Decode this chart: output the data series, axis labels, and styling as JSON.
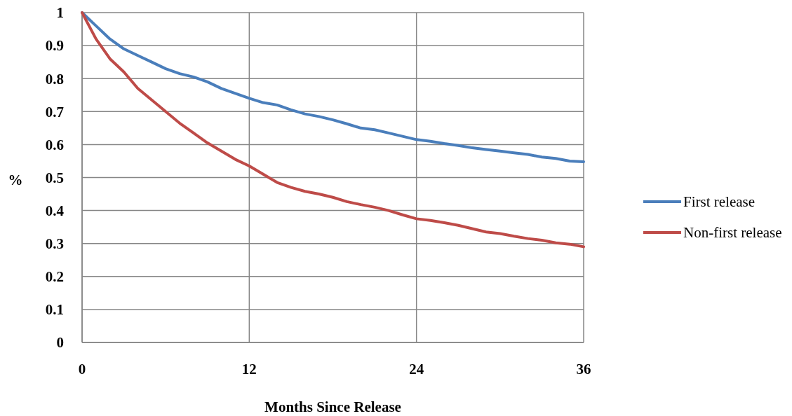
{
  "chart_data": {
    "type": "line",
    "xlabel": "Months Since Release",
    "ylabel": "%",
    "x": [
      0,
      1,
      2,
      3,
      4,
      5,
      6,
      7,
      8,
      9,
      10,
      11,
      12,
      13,
      14,
      15,
      16,
      17,
      18,
      19,
      20,
      21,
      22,
      23,
      24,
      25,
      26,
      27,
      28,
      29,
      30,
      31,
      32,
      33,
      34,
      35,
      36
    ],
    "series": [
      {
        "name": "First release",
        "color": "#4a7ebb",
        "values": [
          1.0,
          0.96,
          0.92,
          0.89,
          0.87,
          0.85,
          0.83,
          0.815,
          0.805,
          0.79,
          0.77,
          0.755,
          0.74,
          0.727,
          0.72,
          0.705,
          0.693,
          0.685,
          0.675,
          0.663,
          0.65,
          0.645,
          0.635,
          0.625,
          0.615,
          0.61,
          0.603,
          0.597,
          0.59,
          0.585,
          0.58,
          0.575,
          0.57,
          0.562,
          0.558,
          0.55,
          0.548
        ]
      },
      {
        "name": "Non-first release",
        "color": "#be4b48",
        "values": [
          1.0,
          0.92,
          0.86,
          0.82,
          0.77,
          0.735,
          0.7,
          0.665,
          0.635,
          0.605,
          0.58,
          0.555,
          0.535,
          0.51,
          0.485,
          0.47,
          0.458,
          0.45,
          0.44,
          0.427,
          0.418,
          0.41,
          0.4,
          0.387,
          0.375,
          0.37,
          0.363,
          0.355,
          0.345,
          0.335,
          0.33,
          0.322,
          0.315,
          0.31,
          0.302,
          0.298,
          0.29
        ]
      }
    ],
    "xlim": [
      0,
      36
    ],
    "xticks": [
      0,
      12,
      24,
      36
    ],
    "ylim": [
      0,
      1
    ],
    "yticks": [
      0,
      0.1,
      0.2,
      0.3,
      0.4,
      0.5,
      0.6,
      0.7,
      0.8,
      0.9,
      1
    ],
    "grid": true,
    "legend": "right",
    "line_style": "solid",
    "marker": "none"
  }
}
